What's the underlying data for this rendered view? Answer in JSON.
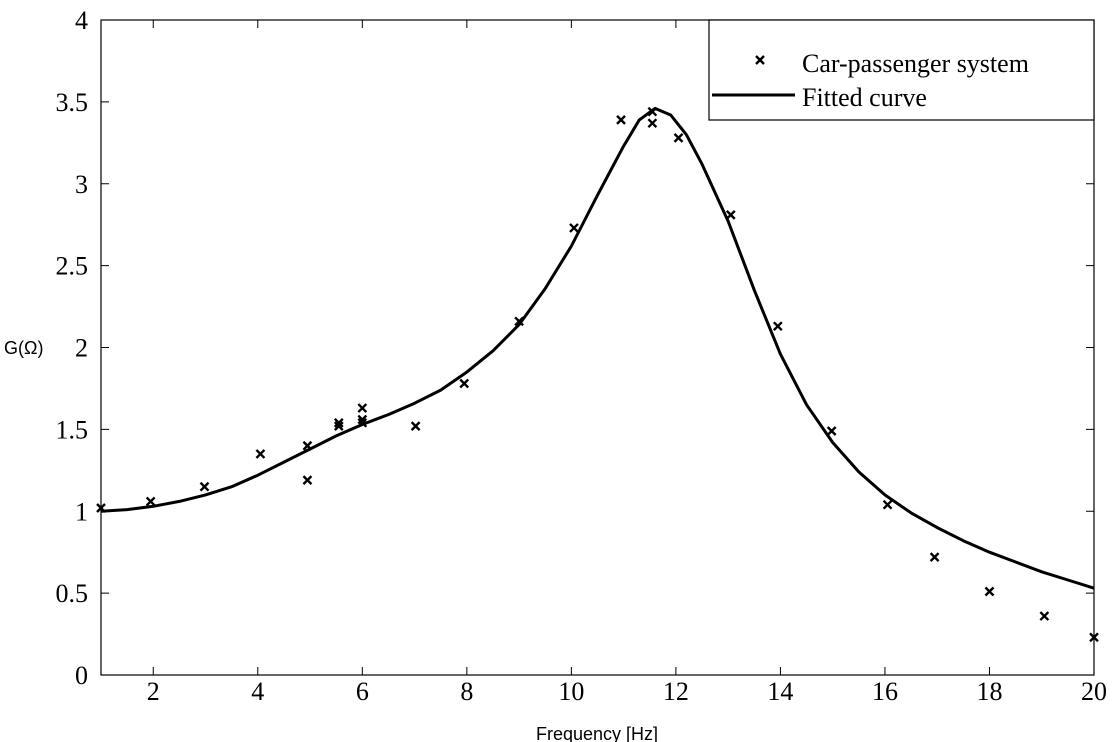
{
  "chart_data": {
    "type": "scatter",
    "title": "",
    "xlabel": "Frequency [Hz]",
    "ylabel": "G(Ω)",
    "xlim": [
      1,
      20
    ],
    "ylim": [
      0,
      4
    ],
    "xticks": [
      2,
      4,
      6,
      8,
      10,
      12,
      14,
      16,
      18,
      20
    ],
    "yticks": [
      0,
      0.5,
      1,
      1.5,
      2,
      2.5,
      3,
      3.5,
      4
    ],
    "xtick_labels": [
      "2",
      "4",
      "6",
      "8",
      "10",
      "12",
      "14",
      "16",
      "18",
      "20"
    ],
    "ytick_labels": [
      "0",
      "0.5",
      "1",
      "1.5",
      "2",
      "2.5",
      "3",
      "3.5",
      "4"
    ],
    "grid": false,
    "legend": {
      "position": "top-right"
    },
    "series": [
      {
        "name": "Car-passenger system",
        "kind": "marker",
        "marker": "x",
        "color": "#000000",
        "points": [
          [
            1.0,
            1.02
          ],
          [
            1.95,
            1.06
          ],
          [
            2.98,
            1.15
          ],
          [
            4.05,
            1.35
          ],
          [
            4.95,
            1.4
          ],
          [
            4.95,
            1.19
          ],
          [
            5.55,
            1.54
          ],
          [
            5.55,
            1.52
          ],
          [
            6.0,
            1.63
          ],
          [
            6.0,
            1.56
          ],
          [
            6.0,
            1.54
          ],
          [
            7.02,
            1.52
          ],
          [
            7.95,
            1.78
          ],
          [
            9.0,
            2.16
          ],
          [
            10.05,
            2.73
          ],
          [
            10.95,
            3.39
          ],
          [
            11.55,
            3.44
          ],
          [
            11.55,
            3.37
          ],
          [
            12.05,
            3.28
          ],
          [
            13.05,
            2.81
          ],
          [
            13.95,
            2.13
          ],
          [
            14.98,
            1.49
          ],
          [
            16.05,
            1.04
          ],
          [
            16.95,
            0.72
          ],
          [
            18.0,
            0.51
          ],
          [
            19.05,
            0.36
          ],
          [
            20.0,
            0.23
          ]
        ]
      },
      {
        "name": "Fitted curve",
        "kind": "line",
        "color": "#000000",
        "points": [
          [
            1.0,
            1.0
          ],
          [
            1.5,
            1.01
          ],
          [
            2.0,
            1.03
          ],
          [
            2.5,
            1.06
          ],
          [
            3.0,
            1.1
          ],
          [
            3.5,
            1.15
          ],
          [
            4.0,
            1.22
          ],
          [
            4.5,
            1.3
          ],
          [
            5.0,
            1.38
          ],
          [
            5.5,
            1.46
          ],
          [
            6.0,
            1.53
          ],
          [
            6.5,
            1.59
          ],
          [
            7.0,
            1.66
          ],
          [
            7.5,
            1.74
          ],
          [
            8.0,
            1.85
          ],
          [
            8.5,
            1.98
          ],
          [
            9.0,
            2.14
          ],
          [
            9.5,
            2.36
          ],
          [
            10.0,
            2.62
          ],
          [
            10.5,
            2.93
          ],
          [
            11.0,
            3.23
          ],
          [
            11.3,
            3.39
          ],
          [
            11.6,
            3.46
          ],
          [
            11.9,
            3.42
          ],
          [
            12.2,
            3.3
          ],
          [
            12.5,
            3.12
          ],
          [
            13.0,
            2.77
          ],
          [
            13.5,
            2.35
          ],
          [
            14.0,
            1.96
          ],
          [
            14.5,
            1.65
          ],
          [
            15.0,
            1.42
          ],
          [
            15.5,
            1.24
          ],
          [
            16.0,
            1.1
          ],
          [
            16.5,
            0.99
          ],
          [
            17.0,
            0.9
          ],
          [
            17.5,
            0.82
          ],
          [
            18.0,
            0.75
          ],
          [
            18.5,
            0.69
          ],
          [
            19.0,
            0.63
          ],
          [
            19.5,
            0.58
          ],
          [
            20.0,
            0.53
          ]
        ]
      }
    ]
  }
}
